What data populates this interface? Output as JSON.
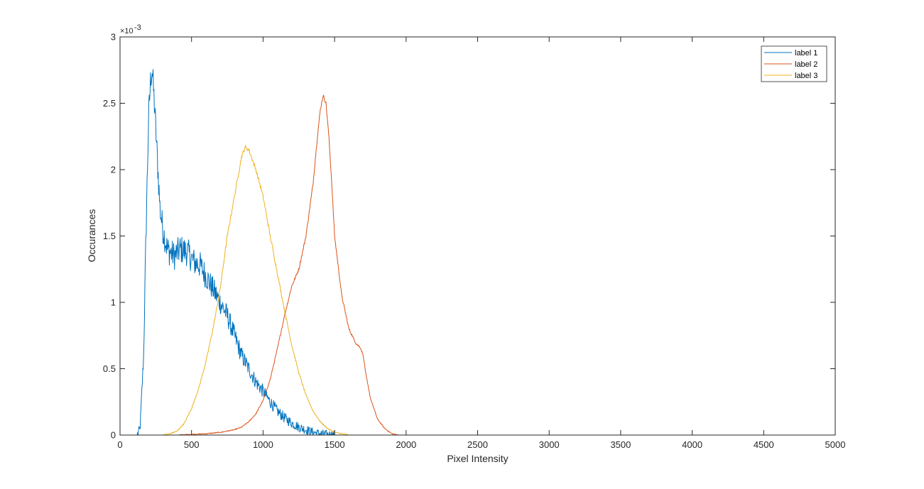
{
  "chart_data": {
    "type": "line",
    "title": "",
    "xlabel": "Pixel Intensity",
    "ylabel": "Occurances",
    "xlim": [
      0,
      5000
    ],
    "ylim": [
      0,
      0.003
    ],
    "x_ticks": [
      0,
      500,
      1000,
      1500,
      2000,
      2500,
      3000,
      3500,
      4000,
      4500,
      5000
    ],
    "x_tick_labels": [
      "0",
      "500",
      "1000",
      "1500",
      "2000",
      "2500",
      "3000",
      "3500",
      "4000",
      "4500",
      "5000"
    ],
    "y_ticks": [
      0,
      0.0005,
      0.001,
      0.0015,
      0.002,
      0.0025,
      0.003
    ],
    "y_tick_labels": [
      "0",
      "0.5",
      "1",
      "1.5",
      "2",
      "2.5",
      "3"
    ],
    "y_exponent_label": "×10",
    "y_exponent_power": "-3",
    "grid": false,
    "legend_position": "top-right",
    "x_data_end": 4900,
    "series": [
      {
        "name": "label 1",
        "color": "#0072BD",
        "noise": 0.00011,
        "points": [
          [
            0,
            0
          ],
          [
            120,
            0
          ],
          [
            140,
            5e-05
          ],
          [
            165,
            0.0006
          ],
          [
            185,
            0.0017
          ],
          [
            200,
            0.0024
          ],
          [
            215,
            0.0027
          ],
          [
            225,
            0.00275
          ],
          [
            240,
            0.0025
          ],
          [
            260,
            0.0021
          ],
          [
            280,
            0.0017
          ],
          [
            300,
            0.00155
          ],
          [
            330,
            0.0014
          ],
          [
            380,
            0.00135
          ],
          [
            420,
            0.0014
          ],
          [
            470,
            0.00138
          ],
          [
            520,
            0.0013
          ],
          [
            560,
            0.00128
          ],
          [
            600,
            0.0012
          ],
          [
            650,
            0.0011
          ],
          [
            700,
            0.001
          ],
          [
            750,
            0.0009
          ],
          [
            800,
            0.00075
          ],
          [
            850,
            0.0006
          ],
          [
            900,
            0.0005
          ],
          [
            950,
            0.0004
          ],
          [
            1000,
            0.00033
          ],
          [
            1050,
            0.00025
          ],
          [
            1100,
            0.00018
          ],
          [
            1150,
            0.00013
          ],
          [
            1200,
            9e-05
          ],
          [
            1250,
            6e-05
          ],
          [
            1300,
            4e-05
          ],
          [
            1350,
            2e-05
          ],
          [
            1400,
            1e-05
          ],
          [
            1450,
            4e-06
          ],
          [
            1500,
            0
          ],
          [
            4900,
            0
          ]
        ]
      },
      {
        "name": "label 2",
        "color": "#D95319",
        "noise": 1.2e-05,
        "points": [
          [
            0,
            0
          ],
          [
            400,
            0
          ],
          [
            500,
            5e-06
          ],
          [
            600,
            1e-05
          ],
          [
            700,
            2e-05
          ],
          [
            800,
            4e-05
          ],
          [
            850,
            6e-05
          ],
          [
            900,
            0.0001
          ],
          [
            950,
            0.00016
          ],
          [
            1000,
            0.00026
          ],
          [
            1050,
            0.00042
          ],
          [
            1100,
            0.00065
          ],
          [
            1150,
            0.0009
          ],
          [
            1200,
            0.00112
          ],
          [
            1250,
            0.00125
          ],
          [
            1300,
            0.0015
          ],
          [
            1350,
            0.0019
          ],
          [
            1380,
            0.00225
          ],
          [
            1400,
            0.00245
          ],
          [
            1420,
            0.00256
          ],
          [
            1440,
            0.0025
          ],
          [
            1460,
            0.00225
          ],
          [
            1480,
            0.0019
          ],
          [
            1500,
            0.0015
          ],
          [
            1550,
            0.00105
          ],
          [
            1600,
            0.0008
          ],
          [
            1650,
            0.00069
          ],
          [
            1680,
            0.00066
          ],
          [
            1700,
            0.0006
          ],
          [
            1720,
            0.00045
          ],
          [
            1750,
            0.00028
          ],
          [
            1800,
            0.00012
          ],
          [
            1850,
            5e-05
          ],
          [
            1900,
            1e-05
          ],
          [
            1950,
            0
          ],
          [
            4900,
            0
          ]
        ]
      },
      {
        "name": "label 3",
        "color": "#EDB120",
        "noise": 1.5e-05,
        "points": [
          [
            0,
            0
          ],
          [
            300,
            0
          ],
          [
            350,
            1e-05
          ],
          [
            400,
            3e-05
          ],
          [
            450,
            9e-05
          ],
          [
            500,
            0.0002
          ],
          [
            550,
            0.00035
          ],
          [
            600,
            0.00055
          ],
          [
            650,
            0.0008
          ],
          [
            700,
            0.0011
          ],
          [
            750,
            0.0015
          ],
          [
            800,
            0.0018
          ],
          [
            850,
            0.0021
          ],
          [
            875,
            0.00217
          ],
          [
            900,
            0.00215
          ],
          [
            950,
            0.002
          ],
          [
            1000,
            0.0018
          ],
          [
            1050,
            0.0015
          ],
          [
            1100,
            0.00122
          ],
          [
            1150,
            0.00094
          ],
          [
            1200,
            0.00068
          ],
          [
            1250,
            0.00047
          ],
          [
            1300,
            0.0003
          ],
          [
            1350,
            0.00018
          ],
          [
            1400,
            0.0001
          ],
          [
            1450,
            5e-05
          ],
          [
            1500,
            2e-05
          ],
          [
            1550,
            1e-05
          ],
          [
            1600,
            0
          ],
          [
            4900,
            0
          ]
        ]
      }
    ]
  }
}
